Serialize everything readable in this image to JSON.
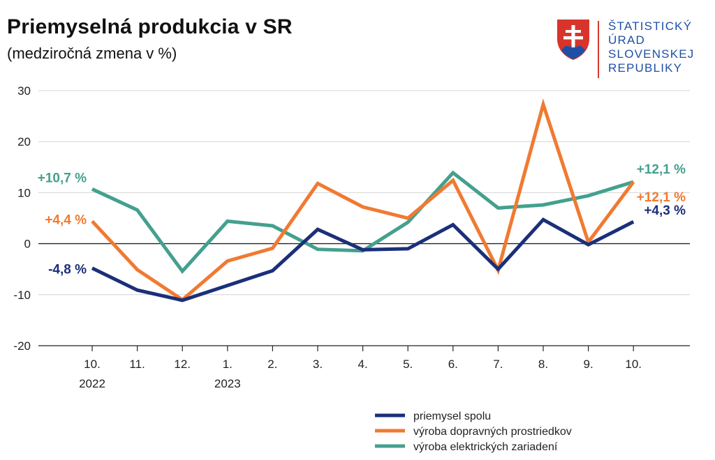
{
  "header": {
    "title": "Priemyselná produkcia v SR",
    "subtitle": "(medziročná zmena v %)"
  },
  "logo": {
    "lines": [
      "ŠTATISTICKÝ",
      "ÚRAD",
      "SLOVENSKEJ",
      "REPUBLIKY"
    ]
  },
  "chart_data": {
    "type": "line",
    "categories": [
      [
        "10.",
        "2022"
      ],
      [
        "11.",
        ""
      ],
      [
        "12.",
        ""
      ],
      [
        "1.",
        "2023"
      ],
      [
        "2.",
        ""
      ],
      [
        "3.",
        ""
      ],
      [
        "4.",
        ""
      ],
      [
        "5.",
        ""
      ],
      [
        "6.",
        ""
      ],
      [
        "7.",
        ""
      ],
      [
        "8.",
        ""
      ],
      [
        "9.",
        ""
      ],
      [
        "10.",
        ""
      ]
    ],
    "ylim": [
      -20,
      30
    ],
    "yticks": [
      -20,
      -10,
      0,
      10,
      20,
      30
    ],
    "grid": true,
    "legend_position": "bottom-right",
    "series": [
      {
        "name": "priemysel spolu",
        "color": "#1b2f7a",
        "values": [
          -4.8,
          -9.1,
          -11.1,
          -8.2,
          -5.3,
          2.8,
          -1.2,
          -1.0,
          3.7,
          -5.0,
          4.7,
          -0.2,
          4.3
        ],
        "start_label": "-4,8 %",
        "end_label": "+4,3 %"
      },
      {
        "name": "výroba dopravných prostriedkov",
        "color": "#f07a32",
        "values": [
          4.4,
          -5.1,
          -11.0,
          -3.4,
          -0.9,
          11.8,
          7.2,
          5.0,
          12.4,
          -5.2,
          27.3,
          0.3,
          12.1
        ],
        "start_label": "+4,4 %",
        "end_label": "+12,1 %"
      },
      {
        "name": "výroba elektrických zariadení",
        "color": "#44a08e",
        "values": [
          10.7,
          6.6,
          -5.4,
          4.4,
          3.5,
          -1.1,
          -1.4,
          4.2,
          13.9,
          7.0,
          7.6,
          9.4,
          12.1
        ],
        "start_label": "+10,7 %",
        "end_label": "+12,1 %"
      }
    ]
  }
}
